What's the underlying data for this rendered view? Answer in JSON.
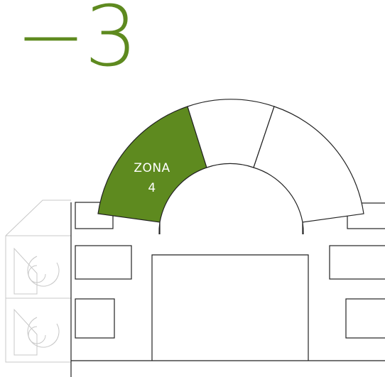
{
  "floor": {
    "level": "−3"
  },
  "zones": [
    {
      "id": "zona-4",
      "label_line1": "ZONA",
      "label_line2": "4",
      "highlighted": true
    },
    {
      "id": "zona-middle",
      "label_line1": "",
      "label_line2": "",
      "highlighted": false
    },
    {
      "id": "zona-right",
      "label_line1": "",
      "label_line2": "",
      "highlighted": false
    }
  ],
  "colors": {
    "accent": "#5e8a1f",
    "line": "#222222",
    "faded_line": "#c8c8c8",
    "zone_text": "#ffffff",
    "background": "#ffffff"
  }
}
